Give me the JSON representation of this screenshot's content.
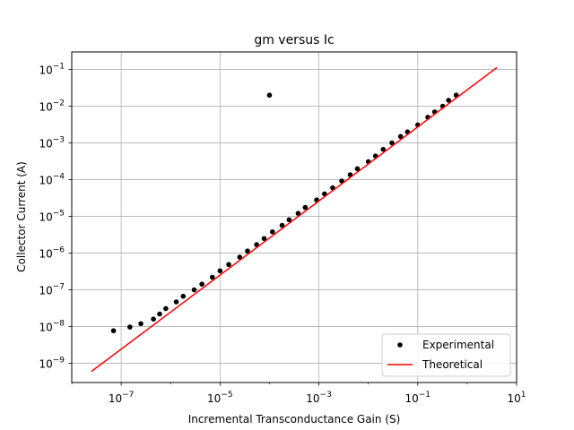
{
  "chart_data": {
    "type": "scatter",
    "title": "gm versus Ic",
    "xlabel": "Incremental Transconductance Gain (S)",
    "ylabel": "Collector Current (A)",
    "x_scale": "log",
    "y_scale": "log",
    "xlim": [
      1e-08,
      10
    ],
    "ylim": [
      3e-10,
      0.3
    ],
    "x_ticks": [
      {
        "value": 1e-07,
        "base": "10",
        "exp": "−7"
      },
      {
        "value": 1e-05,
        "base": "10",
        "exp": "−5"
      },
      {
        "value": 0.001,
        "base": "10",
        "exp": "−3"
      },
      {
        "value": 0.1,
        "base": "10",
        "exp": "−1"
      },
      {
        "value": 10,
        "base": "10",
        "exp": "1"
      }
    ],
    "y_ticks": [
      {
        "value": 1e-09,
        "base": "10",
        "exp": "−9"
      },
      {
        "value": 1e-08,
        "base": "10",
        "exp": "−8"
      },
      {
        "value": 1e-07,
        "base": "10",
        "exp": "−7"
      },
      {
        "value": 1e-06,
        "base": "10",
        "exp": "−6"
      },
      {
        "value": 1e-05,
        "base": "10",
        "exp": "−5"
      },
      {
        "value": 0.0001,
        "base": "10",
        "exp": "−4"
      },
      {
        "value": 0.001,
        "base": "10",
        "exp": "−3"
      },
      {
        "value": 0.01,
        "base": "10",
        "exp": "−2"
      },
      {
        "value": 0.1,
        "base": "10",
        "exp": "−1"
      }
    ],
    "grid": true,
    "legend_position": "bottom-right",
    "series": [
      {
        "name": "Experimental",
        "style": "points",
        "color": "#000000",
        "points": [
          [
            7e-08,
            7.7e-09
          ],
          [
            1.5e-07,
            9.7e-09
          ],
          [
            2.5e-07,
            1.2e-08
          ],
          [
            4.5e-07,
            1.6e-08
          ],
          [
            6e-07,
            2.2e-08
          ],
          [
            8e-07,
            3.1e-08
          ],
          [
            1.3e-06,
            4.7e-08
          ],
          [
            1.8e-06,
            6.7e-08
          ],
          [
            3e-06,
            1e-07
          ],
          [
            4.3e-06,
            1.43e-07
          ],
          [
            7e-06,
            2.2e-07
          ],
          [
            1e-05,
            3.3e-07
          ],
          [
            1.5e-05,
            4.9e-07
          ],
          [
            2.5e-05,
            7.8e-07
          ],
          [
            3.6e-05,
            1.14e-06
          ],
          [
            5.5e-05,
            1.7e-06
          ],
          [
            7.8e-05,
            2.5e-06
          ],
          [
            0.0001,
            0.02
          ],
          [
            0.000115,
            3.8e-06
          ],
          [
            0.00018,
            5.7e-06
          ],
          [
            0.00025,
            8.1e-06
          ],
          [
            0.00038,
            1.21e-05
          ],
          [
            0.00053,
            1.75e-05
          ],
          [
            0.0009,
            2.8e-05
          ],
          [
            0.0013,
            4.1e-05
          ],
          [
            0.0019,
            6e-05
          ],
          [
            0.0029,
            9.2e-05
          ],
          [
            0.0043,
            0.000136
          ],
          [
            0.006,
            0.000198
          ],
          [
            0.01,
            0.00031
          ],
          [
            0.014,
            0.00044
          ],
          [
            0.02,
            0.00067
          ],
          [
            0.03,
            0.001
          ],
          [
            0.045,
            0.0015
          ],
          [
            0.062,
            0.002
          ],
          [
            0.1,
            0.0031
          ],
          [
            0.16,
            0.005
          ],
          [
            0.22,
            0.007
          ],
          [
            0.32,
            0.01
          ],
          [
            0.42,
            0.0145
          ],
          [
            0.6,
            0.02
          ]
        ]
      },
      {
        "name": "Theoretical",
        "style": "line",
        "color": "#ff0000",
        "points": [
          [
            2.5e-08,
            6e-10
          ],
          [
            4.0,
            0.113
          ]
        ]
      }
    ]
  }
}
